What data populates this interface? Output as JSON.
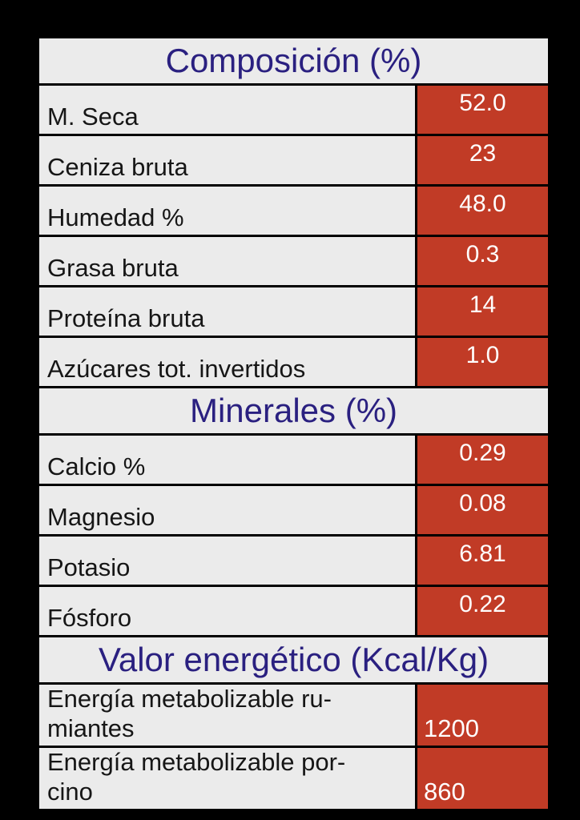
{
  "colors": {
    "page_background": "#000000",
    "cell_background": "#ebebeb",
    "value_cell_background": "#c13b26",
    "section_header_text": "#2a2080",
    "label_text": "#161616",
    "value_text": "#ffffff",
    "border": "#000000"
  },
  "table": {
    "sections": [
      {
        "header": "Composición (%)",
        "rows": [
          {
            "lines": [
              "M. Seca"
            ],
            "value": "52.0"
          },
          {
            "lines": [
              "Ceniza bruta"
            ],
            "value": "23"
          },
          {
            "lines": [
              "Humedad %"
            ],
            "value": "48.0"
          },
          {
            "lines": [
              "Grasa bruta"
            ],
            "value": "0.3"
          },
          {
            "lines": [
              "Proteína bruta"
            ],
            "value": "14"
          },
          {
            "lines": [
              "Azúcares tot. invertidos"
            ],
            "value": "1.0"
          }
        ]
      },
      {
        "header": "Minerales (%)",
        "rows": [
          {
            "lines": [
              "Calcio %"
            ],
            "value": "0.29"
          },
          {
            "lines": [
              "Magnesio"
            ],
            "value": "0.08"
          },
          {
            "lines": [
              "Potasio"
            ],
            "value": "6.81"
          },
          {
            "lines": [
              "Fósforo"
            ],
            "value": "0.22"
          }
        ]
      },
      {
        "header": "Valor energético (Kcal/Kg)",
        "rows": [
          {
            "lines": [
              "Energía metabolizable ru-",
              "miantes"
            ],
            "value": "1200"
          },
          {
            "lines": [
              "Energía metabolizable por-",
              "cino"
            ],
            "value": "860"
          }
        ]
      }
    ]
  },
  "chart_data": {
    "type": "table",
    "title": "",
    "sections": [
      {
        "header": "Composición (%)",
        "rows": [
          [
            "M. Seca",
            52.0
          ],
          [
            "Ceniza bruta",
            23
          ],
          [
            "Humedad %",
            48.0
          ],
          [
            "Grasa bruta",
            0.3
          ],
          [
            "Proteína bruta",
            14
          ],
          [
            "Azúcares tot. invertidos",
            1.0
          ]
        ]
      },
      {
        "header": "Minerales (%)",
        "rows": [
          [
            "Calcio %",
            0.29
          ],
          [
            "Magnesio",
            0.08
          ],
          [
            "Potasio",
            6.81
          ],
          [
            "Fósforo",
            0.22
          ]
        ]
      },
      {
        "header": "Valor energético (Kcal/Kg)",
        "rows": [
          [
            "Energía metabolizable rumiantes",
            1200
          ],
          [
            "Energía metabolizable porcino",
            860
          ]
        ]
      }
    ]
  }
}
